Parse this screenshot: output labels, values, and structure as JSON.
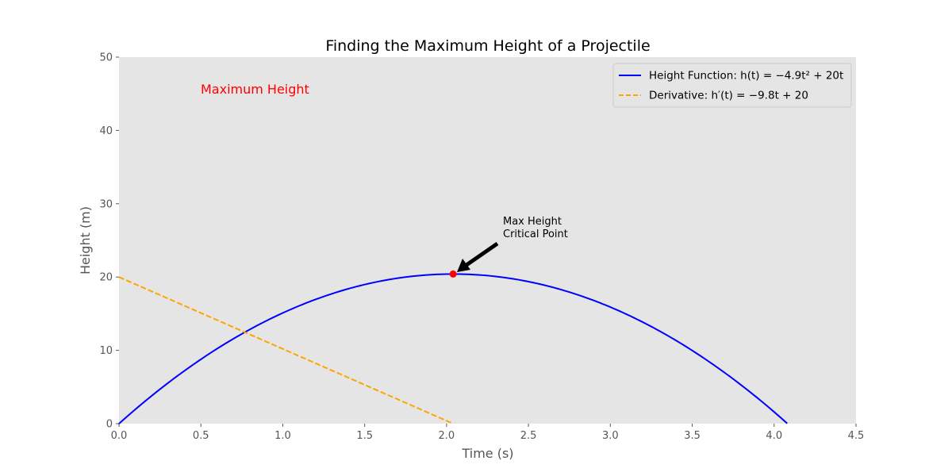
{
  "chart_data": {
    "type": "line",
    "title": "Finding the Maximum Height of a Projectile",
    "xlabel": "Time (s)",
    "ylabel": "Height (m)",
    "xlim": [
      0,
      4.5
    ],
    "ylim": [
      0,
      50
    ],
    "xticks": [
      "0.0",
      "0.5",
      "1.0",
      "1.5",
      "2.0",
      "2.5",
      "3.0",
      "3.5",
      "4.0",
      "4.5"
    ],
    "yticks": [
      "0",
      "10",
      "20",
      "30",
      "40",
      "50"
    ],
    "grid": false,
    "legend_position": "top-right",
    "series": [
      {
        "name": "Height Function: h(t) = −4.9t² + 20t",
        "color": "#0000ff",
        "style": "solid",
        "x": [
          0,
          0.25,
          0.5,
          0.75,
          1.0,
          1.25,
          1.5,
          1.75,
          2.0,
          2.04,
          2.25,
          2.5,
          2.75,
          3.0,
          3.25,
          3.5,
          3.75,
          4.0,
          4.08
        ],
        "y": [
          0,
          4.69,
          8.78,
          12.24,
          15.1,
          17.34,
          18.98,
          19.99,
          20.4,
          20.41,
          20.19,
          19.38,
          17.94,
          15.9,
          13.24,
          9.98,
          6.09,
          1.6,
          0
        ]
      },
      {
        "name": "Derivative: h′(t) = −9.8t + 20",
        "color": "#ffa500",
        "style": "dashed",
        "x": [
          0,
          2.04
        ],
        "y": [
          20,
          0
        ]
      }
    ],
    "critical_point": {
      "x": 2.04,
      "y": 20.41,
      "color": "#ff0000"
    },
    "annotations": {
      "max_height_label": "Maximum Height",
      "critical_line1": "Max Height",
      "critical_line2": "Critical Point"
    }
  }
}
